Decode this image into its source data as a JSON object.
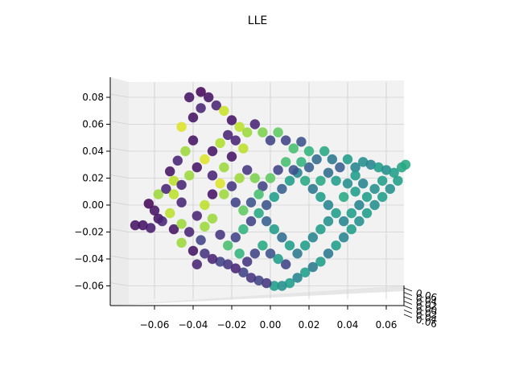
{
  "chart_data": {
    "type": "scatter",
    "projection": "3d",
    "title": "LLE",
    "xlabel": "",
    "ylabel": "",
    "zlabel": "",
    "colormap": "viridis",
    "xlim": [
      -0.08,
      0.075
    ],
    "zlim": [
      -0.072,
      0.093
    ],
    "x_ticks": [
      "−0.06",
      "−0.04",
      "−0.02",
      "0.00",
      "0.02",
      "0.04",
      "0.06"
    ],
    "z_ticks": [
      "−0.06",
      "−0.04",
      "−0.02",
      "0.00",
      "0.02",
      "0.04",
      "0.06",
      "0.08"
    ],
    "y_ticks": [
      "0.06",
      "0.04",
      "0.02",
      "0.00",
      "0.02",
      "0.04",
      "0.06"
    ],
    "grid": true,
    "points": [
      {
        "x": -0.07,
        "z": -0.015,
        "c": 0.05
      },
      {
        "x": -0.066,
        "z": -0.015,
        "c": 0.05
      },
      {
        "x": -0.062,
        "z": -0.017,
        "c": 0.08
      },
      {
        "x": -0.058,
        "z": -0.01,
        "c": 0.05
      },
      {
        "x": -0.06,
        "z": -0.004,
        "c": 0.05
      },
      {
        "x": -0.063,
        "z": 0.001,
        "c": 0.02
      },
      {
        "x": -0.058,
        "z": 0.008,
        "c": 0.85
      },
      {
        "x": -0.054,
        "z": 0.012,
        "c": 0.1
      },
      {
        "x": -0.05,
        "z": 0.018,
        "c": 0.9
      },
      {
        "x": -0.052,
        "z": 0.025,
        "c": 0.05
      },
      {
        "x": -0.048,
        "z": 0.033,
        "c": 0.1
      },
      {
        "x": -0.044,
        "z": 0.04,
        "c": 0.85
      },
      {
        "x": -0.04,
        "z": 0.048,
        "c": 0.05
      },
      {
        "x": -0.046,
        "z": 0.058,
        "c": 0.95
      },
      {
        "x": -0.04,
        "z": 0.065,
        "c": 0.05
      },
      {
        "x": -0.036,
        "z": 0.072,
        "c": 0.1
      },
      {
        "x": -0.042,
        "z": 0.08,
        "c": 0.05
      },
      {
        "x": -0.036,
        "z": 0.084,
        "c": 0.02
      },
      {
        "x": -0.032,
        "z": 0.08,
        "c": 0.05
      },
      {
        "x": -0.028,
        "z": 0.074,
        "c": 0.1
      },
      {
        "x": -0.024,
        "z": 0.07,
        "c": 0.92
      },
      {
        "x": -0.02,
        "z": 0.063,
        "c": 0.05
      },
      {
        "x": -0.016,
        "z": 0.058,
        "c": 0.9
      },
      {
        "x": -0.022,
        "z": 0.052,
        "c": 0.1
      },
      {
        "x": -0.026,
        "z": 0.046,
        "c": 0.88
      },
      {
        "x": -0.03,
        "z": 0.04,
        "c": 0.05
      },
      {
        "x": -0.034,
        "z": 0.034,
        "c": 0.95
      },
      {
        "x": -0.038,
        "z": 0.028,
        "c": 0.05
      },
      {
        "x": -0.042,
        "z": 0.022,
        "c": 0.85
      },
      {
        "x": -0.046,
        "z": 0.015,
        "c": 0.1
      },
      {
        "x": -0.05,
        "z": 0.008,
        "c": 0.9
      },
      {
        "x": -0.046,
        "z": 0.002,
        "c": 0.1
      },
      {
        "x": -0.052,
        "z": -0.006,
        "c": 0.9
      },
      {
        "x": -0.056,
        "z": -0.012,
        "c": 0.1
      },
      {
        "x": -0.05,
        "z": -0.018,
        "c": 0.05
      },
      {
        "x": -0.046,
        "z": -0.014,
        "c": 0.85
      },
      {
        "x": -0.042,
        "z": -0.02,
        "c": 0.1
      },
      {
        "x": -0.046,
        "z": -0.028,
        "c": 0.85
      },
      {
        "x": -0.04,
        "z": -0.034,
        "c": 0.05
      },
      {
        "x": -0.036,
        "z": -0.026,
        "c": 0.2
      },
      {
        "x": -0.034,
        "z": -0.016,
        "c": 0.85
      },
      {
        "x": -0.038,
        "z": -0.008,
        "c": 0.1
      },
      {
        "x": -0.034,
        "z": 0.0,
        "c": 0.9
      },
      {
        "x": -0.03,
        "z": 0.008,
        "c": 0.05
      },
      {
        "x": -0.026,
        "z": 0.016,
        "c": 0.95
      },
      {
        "x": -0.03,
        "z": 0.022,
        "c": 0.1
      },
      {
        "x": -0.024,
        "z": 0.028,
        "c": 0.85
      },
      {
        "x": -0.02,
        "z": 0.036,
        "c": 0.05
      },
      {
        "x": -0.014,
        "z": 0.042,
        "c": 0.9
      },
      {
        "x": -0.018,
        "z": 0.048,
        "c": 0.1
      },
      {
        "x": -0.012,
        "z": 0.054,
        "c": 0.85
      },
      {
        "x": -0.008,
        "z": 0.06,
        "c": 0.1
      },
      {
        "x": -0.004,
        "z": 0.054,
        "c": 0.8
      },
      {
        "x": 0.0,
        "z": 0.048,
        "c": 0.2
      },
      {
        "x": 0.004,
        "z": 0.054,
        "c": 0.75
      },
      {
        "x": 0.008,
        "z": 0.048,
        "c": 0.2
      },
      {
        "x": 0.012,
        "z": 0.042,
        "c": 0.7
      },
      {
        "x": 0.016,
        "z": 0.047,
        "c": 0.25
      },
      {
        "x": 0.02,
        "z": 0.04,
        "c": 0.65
      },
      {
        "x": 0.024,
        "z": 0.034,
        "c": 0.35
      },
      {
        "x": 0.028,
        "z": 0.04,
        "c": 0.6
      },
      {
        "x": 0.032,
        "z": 0.034,
        "c": 0.4
      },
      {
        "x": 0.036,
        "z": 0.028,
        "c": 0.3
      },
      {
        "x": 0.04,
        "z": 0.034,
        "c": 0.55
      },
      {
        "x": 0.044,
        "z": 0.028,
        "c": 0.45
      },
      {
        "x": 0.048,
        "z": 0.032,
        "c": 0.5
      },
      {
        "x": 0.052,
        "z": 0.03,
        "c": 0.45
      },
      {
        "x": 0.056,
        "z": 0.028,
        "c": 0.55
      },
      {
        "x": 0.06,
        "z": 0.026,
        "c": 0.5
      },
      {
        "x": 0.064,
        "z": 0.024,
        "c": 0.55
      },
      {
        "x": 0.068,
        "z": 0.028,
        "c": 0.58
      },
      {
        "x": 0.07,
        "z": 0.03,
        "c": 0.6
      },
      {
        "x": 0.066,
        "z": 0.018,
        "c": 0.55
      },
      {
        "x": 0.062,
        "z": 0.012,
        "c": 0.5
      },
      {
        "x": 0.058,
        "z": 0.006,
        "c": 0.55
      },
      {
        "x": 0.054,
        "z": 0.0,
        "c": 0.5
      },
      {
        "x": 0.05,
        "z": -0.006,
        "c": 0.55
      },
      {
        "x": 0.046,
        "z": -0.012,
        "c": 0.5
      },
      {
        "x": 0.042,
        "z": -0.018,
        "c": 0.55
      },
      {
        "x": 0.038,
        "z": -0.024,
        "c": 0.45
      },
      {
        "x": 0.034,
        "z": -0.03,
        "c": 0.55
      },
      {
        "x": 0.03,
        "z": -0.036,
        "c": 0.4
      },
      {
        "x": 0.026,
        "z": -0.042,
        "c": 0.55
      },
      {
        "x": 0.022,
        "z": -0.046,
        "c": 0.4
      },
      {
        "x": 0.018,
        "z": -0.05,
        "c": 0.55
      },
      {
        "x": 0.014,
        "z": -0.054,
        "c": 0.45
      },
      {
        "x": 0.01,
        "z": -0.058,
        "c": 0.55
      },
      {
        "x": 0.006,
        "z": -0.06,
        "c": 0.5
      },
      {
        "x": 0.002,
        "z": -0.06,
        "c": 0.55
      },
      {
        "x": -0.002,
        "z": -0.058,
        "c": 0.15
      },
      {
        "x": -0.006,
        "z": -0.056,
        "c": 0.2
      },
      {
        "x": -0.01,
        "z": -0.054,
        "c": 0.15
      },
      {
        "x": -0.014,
        "z": -0.05,
        "c": 0.2
      },
      {
        "x": -0.018,
        "z": -0.047,
        "c": 0.1
      },
      {
        "x": -0.022,
        "z": -0.044,
        "c": 0.15
      },
      {
        "x": -0.026,
        "z": -0.042,
        "c": 0.2
      },
      {
        "x": -0.03,
        "z": -0.04,
        "c": 0.1
      },
      {
        "x": -0.034,
        "z": -0.036,
        "c": 0.15
      },
      {
        "x": -0.038,
        "z": -0.044,
        "c": 0.1
      },
      {
        "x": -0.022,
        "z": -0.03,
        "c": 0.7
      },
      {
        "x": -0.018,
        "z": -0.024,
        "c": 0.2
      },
      {
        "x": -0.014,
        "z": -0.018,
        "c": 0.65
      },
      {
        "x": -0.01,
        "z": -0.012,
        "c": 0.2
      },
      {
        "x": -0.006,
        "z": -0.006,
        "c": 0.6
      },
      {
        "x": -0.002,
        "z": 0.0,
        "c": 0.25
      },
      {
        "x": 0.002,
        "z": 0.006,
        "c": 0.55
      },
      {
        "x": 0.006,
        "z": 0.012,
        "c": 0.3
      },
      {
        "x": 0.01,
        "z": 0.018,
        "c": 0.55
      },
      {
        "x": 0.014,
        "z": 0.024,
        "c": 0.45
      },
      {
        "x": 0.018,
        "z": 0.018,
        "c": 0.6
      },
      {
        "x": 0.022,
        "z": 0.012,
        "c": 0.4
      },
      {
        "x": 0.026,
        "z": 0.006,
        "c": 0.55
      },
      {
        "x": 0.03,
        "z": 0.0,
        "c": 0.45
      },
      {
        "x": 0.034,
        "z": -0.006,
        "c": 0.55
      },
      {
        "x": 0.038,
        "z": -0.012,
        "c": 0.45
      },
      {
        "x": 0.042,
        "z": -0.006,
        "c": 0.55
      },
      {
        "x": 0.046,
        "z": 0.0,
        "c": 0.45
      },
      {
        "x": 0.05,
        "z": 0.006,
        "c": 0.55
      },
      {
        "x": 0.054,
        "z": 0.012,
        "c": 0.5
      },
      {
        "x": 0.058,
        "z": 0.018,
        "c": 0.55
      },
      {
        "x": 0.034,
        "z": 0.018,
        "c": 0.55
      },
      {
        "x": 0.03,
        "z": 0.024,
        "c": 0.35
      },
      {
        "x": 0.026,
        "z": 0.018,
        "c": 0.6
      },
      {
        "x": 0.02,
        "z": 0.028,
        "c": 0.3
      },
      {
        "x": 0.016,
        "z": 0.032,
        "c": 0.65
      },
      {
        "x": 0.012,
        "z": 0.026,
        "c": 0.25
      },
      {
        "x": 0.008,
        "z": 0.032,
        "c": 0.7
      },
      {
        "x": 0.004,
        "z": 0.026,
        "c": 0.2
      },
      {
        "x": 0.0,
        "z": 0.02,
        "c": 0.75
      },
      {
        "x": -0.004,
        "z": 0.014,
        "c": 0.2
      },
      {
        "x": -0.008,
        "z": 0.02,
        "c": 0.8
      },
      {
        "x": -0.012,
        "z": 0.026,
        "c": 0.15
      },
      {
        "x": -0.016,
        "z": 0.02,
        "c": 0.85
      },
      {
        "x": -0.02,
        "z": 0.014,
        "c": 0.15
      },
      {
        "x": -0.024,
        "z": 0.008,
        "c": 0.85
      },
      {
        "x": -0.018,
        "z": 0.002,
        "c": 0.2
      },
      {
        "x": -0.014,
        "z": -0.004,
        "c": 0.75
      },
      {
        "x": -0.01,
        "z": 0.002,
        "c": 0.25
      },
      {
        "x": -0.006,
        "z": 0.008,
        "c": 0.7
      },
      {
        "x": -0.002,
        "z": -0.012,
        "c": 0.3
      },
      {
        "x": 0.002,
        "z": -0.018,
        "c": 0.55
      },
      {
        "x": 0.006,
        "z": -0.024,
        "c": 0.35
      },
      {
        "x": 0.01,
        "z": -0.03,
        "c": 0.55
      },
      {
        "x": 0.014,
        "z": -0.036,
        "c": 0.4
      },
      {
        "x": 0.018,
        "z": -0.03,
        "c": 0.55
      },
      {
        "x": 0.022,
        "z": -0.024,
        "c": 0.45
      },
      {
        "x": 0.026,
        "z": -0.018,
        "c": 0.55
      },
      {
        "x": 0.03,
        "z": -0.012,
        "c": 0.5
      },
      {
        "x": 0.008,
        "z": -0.044,
        "c": 0.2
      },
      {
        "x": 0.004,
        "z": -0.04,
        "c": 0.55
      },
      {
        "x": 0.0,
        "z": -0.036,
        "c": 0.25
      },
      {
        "x": -0.004,
        "z": -0.03,
        "c": 0.6
      },
      {
        "x": -0.008,
        "z": -0.036,
        "c": 0.2
      },
      {
        "x": -0.012,
        "z": -0.042,
        "c": 0.15
      },
      {
        "x": -0.016,
        "z": -0.036,
        "c": 0.65
      },
      {
        "x": -0.026,
        "z": -0.022,
        "c": 0.15
      },
      {
        "x": -0.03,
        "z": -0.01,
        "c": 0.85
      },
      {
        "x": 0.04,
        "z": 0.016,
        "c": 0.5
      },
      {
        "x": 0.044,
        "z": 0.01,
        "c": 0.55
      },
      {
        "x": 0.048,
        "z": 0.016,
        "c": 0.45
      },
      {
        "x": 0.044,
        "z": 0.022,
        "c": 0.55
      },
      {
        "x": 0.038,
        "z": 0.006,
        "c": 0.6
      }
    ]
  }
}
